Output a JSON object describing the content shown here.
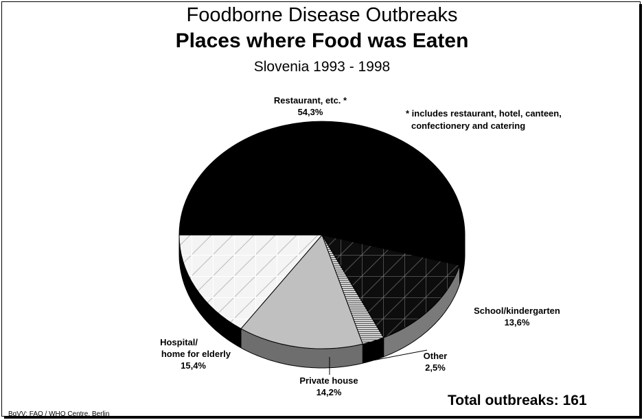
{
  "title": "Foodborne Disease Outbreaks",
  "subtitle": "Places where Food was Eaten",
  "period": "Slovenia 1993 - 1998",
  "footnote": {
    "line1": "* includes restaurant, hotel, canteen,",
    "line2": "confectionery and catering"
  },
  "total": "Total outbreaks: 161",
  "source": "BgVV: FAO / WHO Centre, Berlin",
  "chart_data": {
    "type": "pie",
    "title": "Places where Food was Eaten",
    "subtitle": "Slovenia 1993 - 1998",
    "unit": "%",
    "slices": [
      {
        "label_lines": [
          "Restaurant, etc.  *",
          "54,3%"
        ],
        "name": "Restaurant, etc.",
        "value": 54.3,
        "value_text": "54,3%",
        "fill": "#000000",
        "pattern": "solid"
      },
      {
        "label_lines": [
          "School/kindergarten",
          "13,6%"
        ],
        "name": "School/kindergarten",
        "value": 13.6,
        "value_text": "13,6%",
        "fill": "#111111",
        "pattern": "grid-hatch"
      },
      {
        "label_lines": [
          "Other",
          "2,5%"
        ],
        "name": "Other",
        "value": 2.5,
        "value_text": "2,5%",
        "fill": "#ffffff",
        "pattern": "horizontal-lines"
      },
      {
        "label_lines": [
          "Private house",
          "14,2%"
        ],
        "name": "Private house",
        "value": 14.2,
        "value_text": "14,2%",
        "fill": "#c0c0c0",
        "pattern": "solid"
      },
      {
        "label_lines": [
          "Hospital/",
          "home for  elderly",
          "15,4%"
        ],
        "name": "Hospital/home for elderly",
        "value": 15.4,
        "value_text": "15,4%",
        "fill": "#f2f2f2",
        "pattern": "diagonal-grid"
      }
    ],
    "total": 161
  }
}
